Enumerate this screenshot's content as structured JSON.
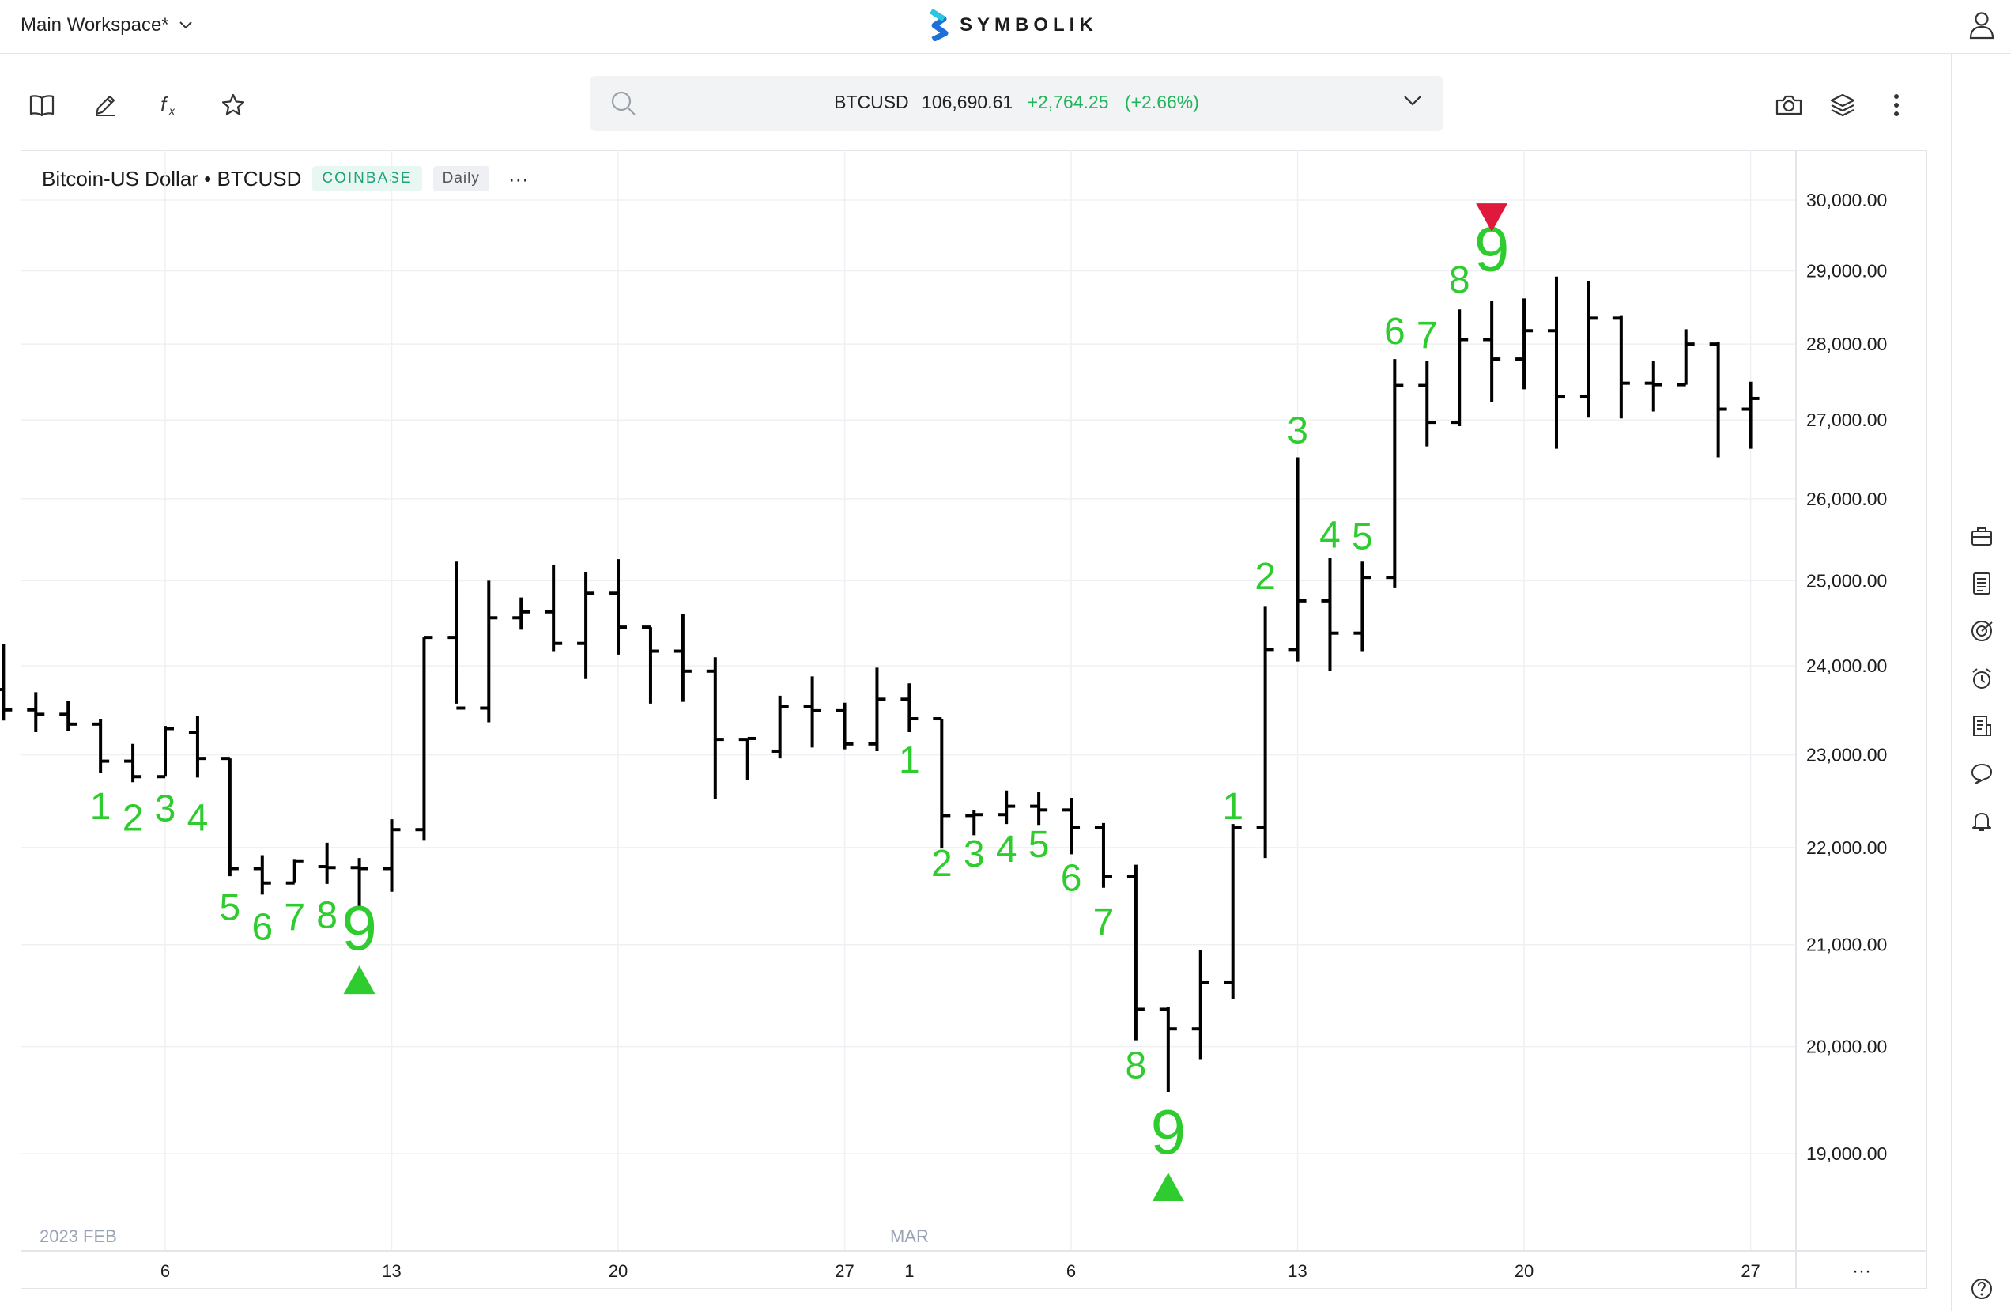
{
  "header": {
    "workspace": "Main Workspace*",
    "brand": "SYMBOLIK"
  },
  "search": {
    "symbol": "BTCUSD",
    "price": "106,690.61",
    "change": "+2,764.25",
    "change_pct": "(+2.66%)"
  },
  "chart_header": {
    "title": "Bitcoin-US Dollar • BTCUSD",
    "exchange": "COINBASE",
    "interval": "Daily",
    "more": "···"
  },
  "colors": {
    "up_text": "#22b45a",
    "count_green": "#2ecc2e",
    "sell_red": "#e0193c",
    "bars": "#000000",
    "axis_text": "#1c1c1c",
    "month_text": "#9aa3b5"
  },
  "icons": {
    "toolbar": [
      "book-icon",
      "pencil-icon",
      "function-icon",
      "star-icon"
    ],
    "toolbar_right": [
      "camera-icon",
      "layers-icon",
      "kebab-menu-icon"
    ],
    "sidebar": [
      "briefcase-icon",
      "news-icon",
      "target-icon",
      "alarm-icon",
      "notes-icon",
      "chat-icon",
      "bell-icon",
      "help-icon"
    ]
  },
  "chart_data": {
    "type": "ohlc",
    "title": "Bitcoin-US Dollar • BTCUSD",
    "y_axis_labels": [
      "30,000.00",
      "29,000.00",
      "28,000.00",
      "27,000.00",
      "26,000.00",
      "25,000.00",
      "24,000.00",
      "23,000.00",
      "22,000.00",
      "21,000.00",
      "20,000.00",
      "19,000.00"
    ],
    "y_axis_scale": "log",
    "x_axis_labels": [
      "6",
      "13",
      "20",
      "27",
      "1",
      "6",
      "13",
      "20",
      "27"
    ],
    "month_labels": [
      "2023 FEB",
      "MAR"
    ],
    "axis_more": "···",
    "bars": [
      {
        "date": "2023-02-01",
        "open": 23730,
        "high": 24250,
        "low": 23380,
        "close": 23500
      },
      {
        "date": "2023-02-02",
        "open": 23500,
        "high": 23700,
        "low": 23250,
        "close": 23450
      },
      {
        "date": "2023-02-03",
        "open": 23450,
        "high": 23600,
        "low": 23260,
        "close": 23340
      },
      {
        "date": "2023-02-04",
        "open": 23340,
        "high": 23400,
        "low": 22800,
        "close": 22930
      },
      {
        "date": "2023-02-05",
        "open": 22930,
        "high": 23120,
        "low": 22700,
        "close": 22760
      },
      {
        "date": "2023-02-06",
        "open": 22760,
        "high": 23320,
        "low": 22760,
        "close": 23290
      },
      {
        "date": "2023-02-07",
        "open": 23250,
        "high": 23430,
        "low": 22750,
        "close": 22960
      },
      {
        "date": "2023-02-08",
        "open": 22960,
        "high": 22960,
        "low": 21700,
        "close": 21780
      },
      {
        "date": "2023-02-09",
        "open": 21780,
        "high": 21920,
        "low": 21510,
        "close": 21630
      },
      {
        "date": "2023-02-10",
        "open": 21630,
        "high": 21880,
        "low": 21630,
        "close": 21860
      },
      {
        "date": "2023-02-11",
        "open": 21800,
        "high": 22050,
        "low": 21620,
        "close": 21790
      },
      {
        "date": "2023-02-12",
        "open": 21790,
        "high": 21890,
        "low": 21380,
        "close": 21780
      },
      {
        "date": "2023-02-13",
        "open": 21780,
        "high": 22300,
        "low": 21540,
        "close": 22190
      },
      {
        "date": "2023-02-14",
        "open": 22190,
        "high": 24330,
        "low": 22080,
        "close": 24330
      },
      {
        "date": "2023-02-15",
        "open": 24330,
        "high": 25230,
        "low": 23570,
        "close": 23520
      },
      {
        "date": "2023-02-16",
        "open": 23520,
        "high": 25000,
        "low": 23360,
        "close": 24560
      },
      {
        "date": "2023-02-17",
        "open": 24560,
        "high": 24800,
        "low": 24420,
        "close": 24630
      },
      {
        "date": "2023-02-18",
        "open": 24630,
        "high": 25190,
        "low": 24170,
        "close": 24260
      },
      {
        "date": "2023-02-19",
        "open": 24260,
        "high": 25100,
        "low": 23850,
        "close": 24850
      },
      {
        "date": "2023-02-20",
        "open": 24850,
        "high": 25260,
        "low": 24130,
        "close": 24450
      },
      {
        "date": "2023-02-21",
        "open": 24450,
        "high": 24450,
        "low": 23570,
        "close": 24170
      },
      {
        "date": "2023-02-22",
        "open": 24170,
        "high": 24600,
        "low": 23590,
        "close": 23940
      },
      {
        "date": "2023-02-23",
        "open": 23940,
        "high": 24100,
        "low": 22520,
        "close": 23170
      },
      {
        "date": "2023-02-24",
        "open": 23170,
        "high": 23170,
        "low": 22720,
        "close": 23180
      },
      {
        "date": "2023-02-25",
        "open": 23040,
        "high": 23660,
        "low": 22960,
        "close": 23540
      },
      {
        "date": "2023-02-26",
        "open": 23540,
        "high": 23880,
        "low": 23080,
        "close": 23490
      },
      {
        "date": "2023-02-27",
        "open": 23490,
        "high": 23580,
        "low": 23060,
        "close": 23120
      },
      {
        "date": "2023-02-28",
        "open": 23120,
        "high": 23980,
        "low": 23040,
        "close": 23620
      },
      {
        "date": "2023-03-01",
        "open": 23620,
        "high": 23800,
        "low": 23250,
        "close": 23400
      },
      {
        "date": "2023-03-02",
        "open": 23400,
        "high": 23400,
        "low": 21990,
        "close": 22340
      },
      {
        "date": "2023-03-03",
        "open": 22340,
        "high": 22400,
        "low": 22130,
        "close": 22350
      },
      {
        "date": "2023-03-04",
        "open": 22350,
        "high": 22610,
        "low": 22250,
        "close": 22440
      },
      {
        "date": "2023-03-05",
        "open": 22440,
        "high": 22590,
        "low": 22240,
        "close": 22400
      },
      {
        "date": "2023-03-06",
        "open": 22400,
        "high": 22530,
        "low": 21930,
        "close": 22210
      },
      {
        "date": "2023-03-07",
        "open": 22210,
        "high": 22260,
        "low": 21580,
        "close": 21700
      },
      {
        "date": "2023-03-08",
        "open": 21700,
        "high": 21820,
        "low": 20060,
        "close": 20360
      },
      {
        "date": "2023-03-09",
        "open": 20360,
        "high": 20380,
        "low": 19570,
        "close": 20170
      },
      {
        "date": "2023-03-10",
        "open": 20170,
        "high": 20950,
        "low": 19880,
        "close": 20620
      },
      {
        "date": "2023-03-11",
        "open": 20620,
        "high": 22250,
        "low": 20460,
        "close": 22210
      },
      {
        "date": "2023-03-12",
        "open": 22210,
        "high": 24690,
        "low": 21890,
        "close": 24190
      },
      {
        "date": "2023-03-13",
        "open": 24190,
        "high": 26520,
        "low": 24050,
        "close": 24760
      },
      {
        "date": "2023-03-14",
        "open": 24760,
        "high": 25270,
        "low": 23940,
        "close": 24380
      },
      {
        "date": "2023-03-15",
        "open": 24380,
        "high": 25230,
        "low": 24170,
        "close": 25040
      },
      {
        "date": "2023-03-16",
        "open": 25040,
        "high": 27800,
        "low": 24910,
        "close": 27450
      },
      {
        "date": "2023-03-17",
        "open": 27450,
        "high": 27770,
        "low": 26660,
        "close": 26970
      },
      {
        "date": "2023-03-18",
        "open": 26970,
        "high": 28470,
        "low": 26920,
        "close": 28060
      },
      {
        "date": "2023-03-19",
        "open": 28060,
        "high": 28580,
        "low": 27230,
        "close": 27800
      },
      {
        "date": "2023-03-20",
        "open": 27800,
        "high": 28620,
        "low": 27400,
        "close": 28180
      },
      {
        "date": "2023-03-21",
        "open": 28180,
        "high": 28920,
        "low": 26630,
        "close": 27310
      },
      {
        "date": "2023-03-22",
        "open": 27310,
        "high": 28860,
        "low": 27030,
        "close": 28350
      },
      {
        "date": "2023-03-23",
        "open": 28350,
        "high": 28380,
        "low": 27020,
        "close": 27480
      },
      {
        "date": "2023-03-24",
        "open": 27480,
        "high": 27780,
        "low": 27110,
        "close": 27460
      },
      {
        "date": "2023-03-25",
        "open": 27460,
        "high": 28200,
        "low": 27460,
        "close": 28000
      },
      {
        "date": "2023-03-26",
        "open": 28000,
        "high": 28030,
        "low": 26520,
        "close": 27140
      },
      {
        "date": "2023-03-27",
        "open": 27140,
        "high": 27500,
        "low": 26630,
        "close": 27280
      }
    ],
    "td_counts": [
      {
        "bar": 3,
        "label": "1",
        "price": 22300,
        "size": "small"
      },
      {
        "bar": 4,
        "label": "2",
        "price": 22180,
        "size": "small"
      },
      {
        "bar": 5,
        "label": "3",
        "price": 22280,
        "size": "small"
      },
      {
        "bar": 6,
        "label": "4",
        "price": 22180,
        "size": "small"
      },
      {
        "bar": 7,
        "label": "5",
        "price": 21250,
        "size": "small"
      },
      {
        "bar": 8,
        "label": "6",
        "price": 21050,
        "size": "small"
      },
      {
        "bar": 9,
        "label": "7",
        "price": 21150,
        "size": "small"
      },
      {
        "bar": 10,
        "label": "8",
        "price": 21170,
        "size": "small"
      },
      {
        "bar": 11,
        "label": "9",
        "price": 20950,
        "size": "large"
      },
      {
        "bar": 28,
        "label": "1",
        "price": 22800,
        "size": "small"
      },
      {
        "bar": 29,
        "label": "2",
        "price": 21700,
        "size": "small"
      },
      {
        "bar": 30,
        "label": "3",
        "price": 21800,
        "size": "small"
      },
      {
        "bar": 31,
        "label": "4",
        "price": 21850,
        "size": "small"
      },
      {
        "bar": 32,
        "label": "5",
        "price": 21900,
        "size": "small"
      },
      {
        "bar": 33,
        "label": "6",
        "price": 21550,
        "size": "small"
      },
      {
        "bar": 34,
        "label": "7",
        "price": 21100,
        "size": "small"
      },
      {
        "bar": 35,
        "label": "8",
        "price": 19700,
        "size": "small"
      },
      {
        "bar": 36,
        "label": "9",
        "price": 19000,
        "size": "large"
      },
      {
        "bar": 38,
        "label": "1",
        "price": 22300,
        "size": "small"
      },
      {
        "bar": 39,
        "label": "2",
        "price": 24900,
        "size": "small"
      },
      {
        "bar": 40,
        "label": "3",
        "price": 26700,
        "size": "small"
      },
      {
        "bar": 41,
        "label": "4",
        "price": 25400,
        "size": "small"
      },
      {
        "bar": 42,
        "label": "5",
        "price": 25380,
        "size": "small"
      },
      {
        "bar": 43,
        "label": "6",
        "price": 28000,
        "size": "small"
      },
      {
        "bar": 44,
        "label": "7",
        "price": 27950,
        "size": "small"
      },
      {
        "bar": 45,
        "label": "8",
        "price": 28700,
        "size": "small"
      },
      {
        "bar": 46,
        "label": "9",
        "price": 29000,
        "size": "large"
      }
    ],
    "signals": [
      {
        "type": "buy",
        "bar": 11,
        "price": 20650
      },
      {
        "type": "buy",
        "bar": 36,
        "price": 18700
      },
      {
        "type": "sell",
        "bar": 46,
        "price": 29750
      }
    ]
  }
}
